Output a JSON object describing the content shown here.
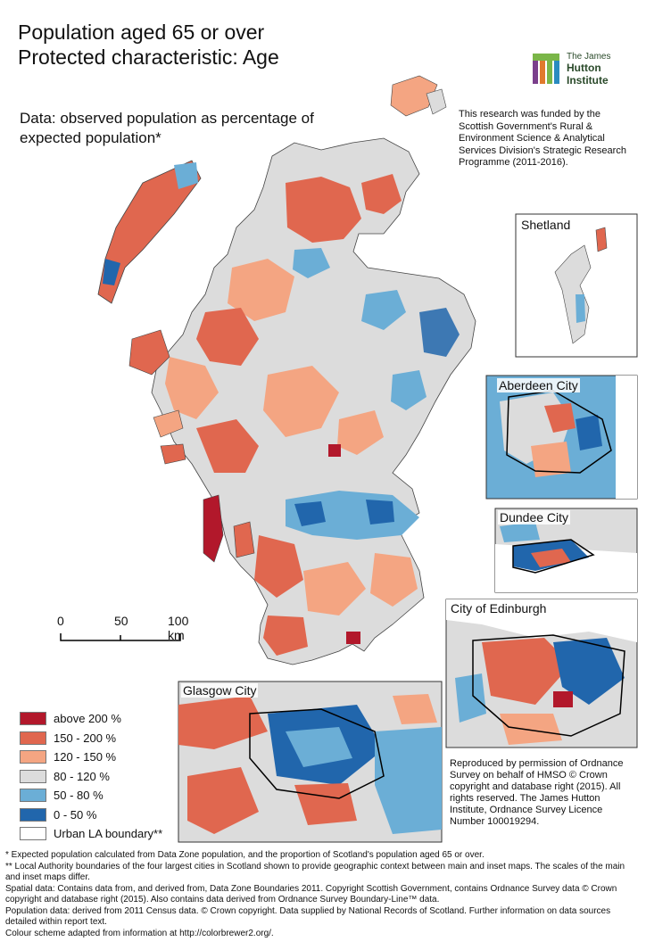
{
  "title_line1": "Population aged 65 or over",
  "title_line2": "Protected characteristic: Age",
  "subtitle": "Data: observed population as percentage of expected population*",
  "funding": "This research was funded by the Scottish Government's Rural & Environment Science & Analytical Services Division's Strategic Research Programme (2011-2016).",
  "logo": {
    "line1": "The James",
    "line2": "Hutton",
    "line3": "Institute"
  },
  "insets": {
    "shetland": "Shetland",
    "aberdeen": "Aberdeen City",
    "dundee": "Dundee City",
    "edinburgh": "City of Edinburgh",
    "glasgow": "Glasgow City"
  },
  "scale": {
    "t0": "0",
    "t50": "50",
    "t100": "100 km"
  },
  "legend": [
    {
      "label": "above 200 %",
      "color": "#b2182b"
    },
    {
      "label": "150 - 200 %",
      "color": "#e0674f"
    },
    {
      "label": "120 - 150 %",
      "color": "#f4a582"
    },
    {
      "label": "80 - 120 %",
      "color": "#dcdcdc"
    },
    {
      "label": "50 - 80 %",
      "color": "#6baed6"
    },
    {
      "label": "0 - 50 %",
      "color": "#2166ac"
    },
    {
      "label": "Urban LA boundary**",
      "color": "#ffffff"
    }
  ],
  "permission": "Reproduced by permission of Ordnance Survey on behalf of HMSO © Crown copyright and database right (2015). All rights reserved. The James Hutton Institute, Ordnance Survey Licence Number 100019294.",
  "footnotes": [
    "* Expected population calculated from Data Zone population, and the proportion of Scotland's population aged 65 or over.",
    "** Local Authority boundaries of the four largest cities in Scotland shown to provide geographic context between main and inset maps. The scales of the main and inset maps differ.",
    "Spatial data: Contains data from, and derived from, Data Zone Boundaries 2011. Copyright Scottish Government, contains Ordnance Survey data © Crown copyright and database right (2015). Also contains data derived from Ordnance Survey Boundary-Line™ data.",
    "Population data: derived from 2011 Census data. © Crown copyright. Data supplied by National Records of Scotland. Further information on data sources detailed within report text.",
    "Colour scheme adapted from information at http://colorbrewer2.org/."
  ]
}
